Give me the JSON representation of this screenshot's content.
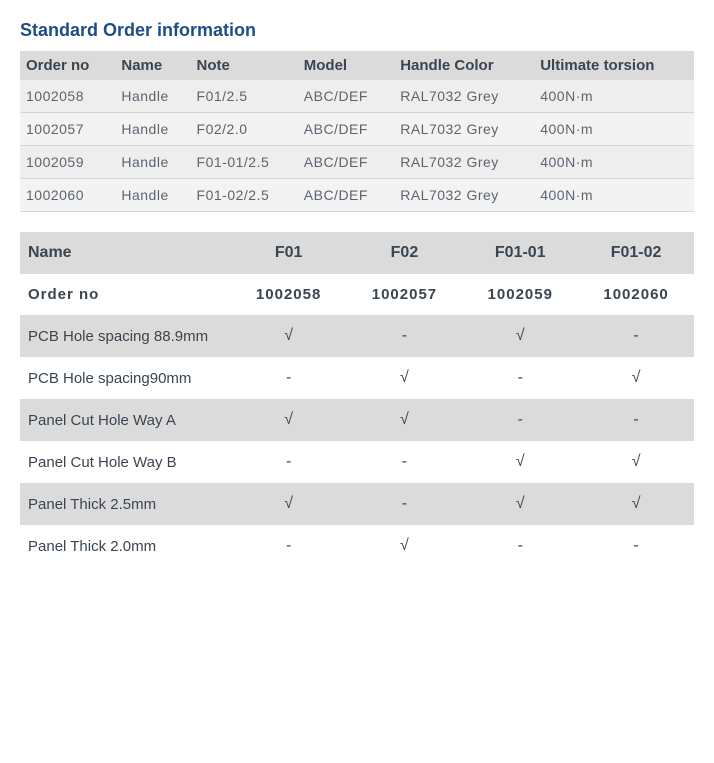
{
  "title": "Standard Order information",
  "colors": {
    "title": "#1f4d86",
    "header_bg": "#dbdbdb",
    "row_bg_a": "#eeeeee",
    "row_bg_b": "#f3f3f3",
    "text_muted": "#5a6570",
    "text_dark": "#3a4550"
  },
  "orderTable": {
    "headers": [
      "Order no",
      "Name",
      "Note",
      "Model",
      "Handle Color",
      "Ultimate torsion"
    ],
    "rows": [
      [
        "1002058",
        "Handle",
        "F01/2.5",
        "ABC/DEF",
        "RAL7032 Grey",
        "400N·m"
      ],
      [
        "1002057",
        "Handle",
        "F02/2.0",
        "ABC/DEF",
        "RAL7032 Grey",
        "400N·m"
      ],
      [
        "1002059",
        "Handle",
        "F01-01/2.5",
        "ABC/DEF",
        "RAL7032 Grey",
        "400N·m"
      ],
      [
        "1002060",
        "Handle",
        "F01-02/2.5",
        "ABC/DEF",
        "RAL7032 Grey",
        "400N·m"
      ]
    ]
  },
  "specMatrix": {
    "checkSymbol": "√",
    "dashSymbol": "-",
    "rows": [
      {
        "label": "Name",
        "values": [
          "F01",
          "F02",
          "F01-01",
          "F01-02"
        ],
        "shade": true,
        "header": true
      },
      {
        "label": "Order no",
        "values": [
          "1002058",
          "1002057",
          "1002059",
          "1002060"
        ],
        "shade": false,
        "order": true
      },
      {
        "label": "PCB Hole spacing 88.9mm",
        "values": [
          "√",
          "-",
          "√",
          "-"
        ],
        "shade": true
      },
      {
        "label": "PCB Hole spacing90mm",
        "values": [
          "-",
          "√",
          "-",
          "√"
        ],
        "shade": false
      },
      {
        "label": "Panel  Cut Hole Way A",
        "values": [
          "√",
          "√",
          "-",
          "-"
        ],
        "shade": true
      },
      {
        "label": "Panel  Cut Hole Way B",
        "values": [
          "-",
          "-",
          "√",
          "√"
        ],
        "shade": false
      },
      {
        "label": "Panel Thick 2.5mm",
        "values": [
          "√",
          "-",
          "√",
          "√"
        ],
        "shade": true
      },
      {
        "label": "Panel Thick 2.0mm",
        "values": [
          "-",
          "√",
          "-",
          "-"
        ],
        "shade": false
      }
    ]
  }
}
